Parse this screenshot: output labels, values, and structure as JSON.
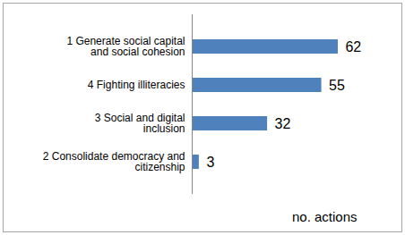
{
  "chart_data": {
    "type": "bar",
    "orientation": "horizontal",
    "categories": [
      "1 Generate social capital and social cohesion",
      "4 Fighting illiteracies",
      "3 Social and digital inclusion",
      "2 Consolidate democracy and citizenship"
    ],
    "values": [
      62,
      55,
      32,
      3
    ],
    "color": "#4f81bd",
    "xlabel": "no. actions",
    "xlim": [
      0,
      70
    ],
    "data_labels": true,
    "tick_labels": "y",
    "grid": false
  }
}
